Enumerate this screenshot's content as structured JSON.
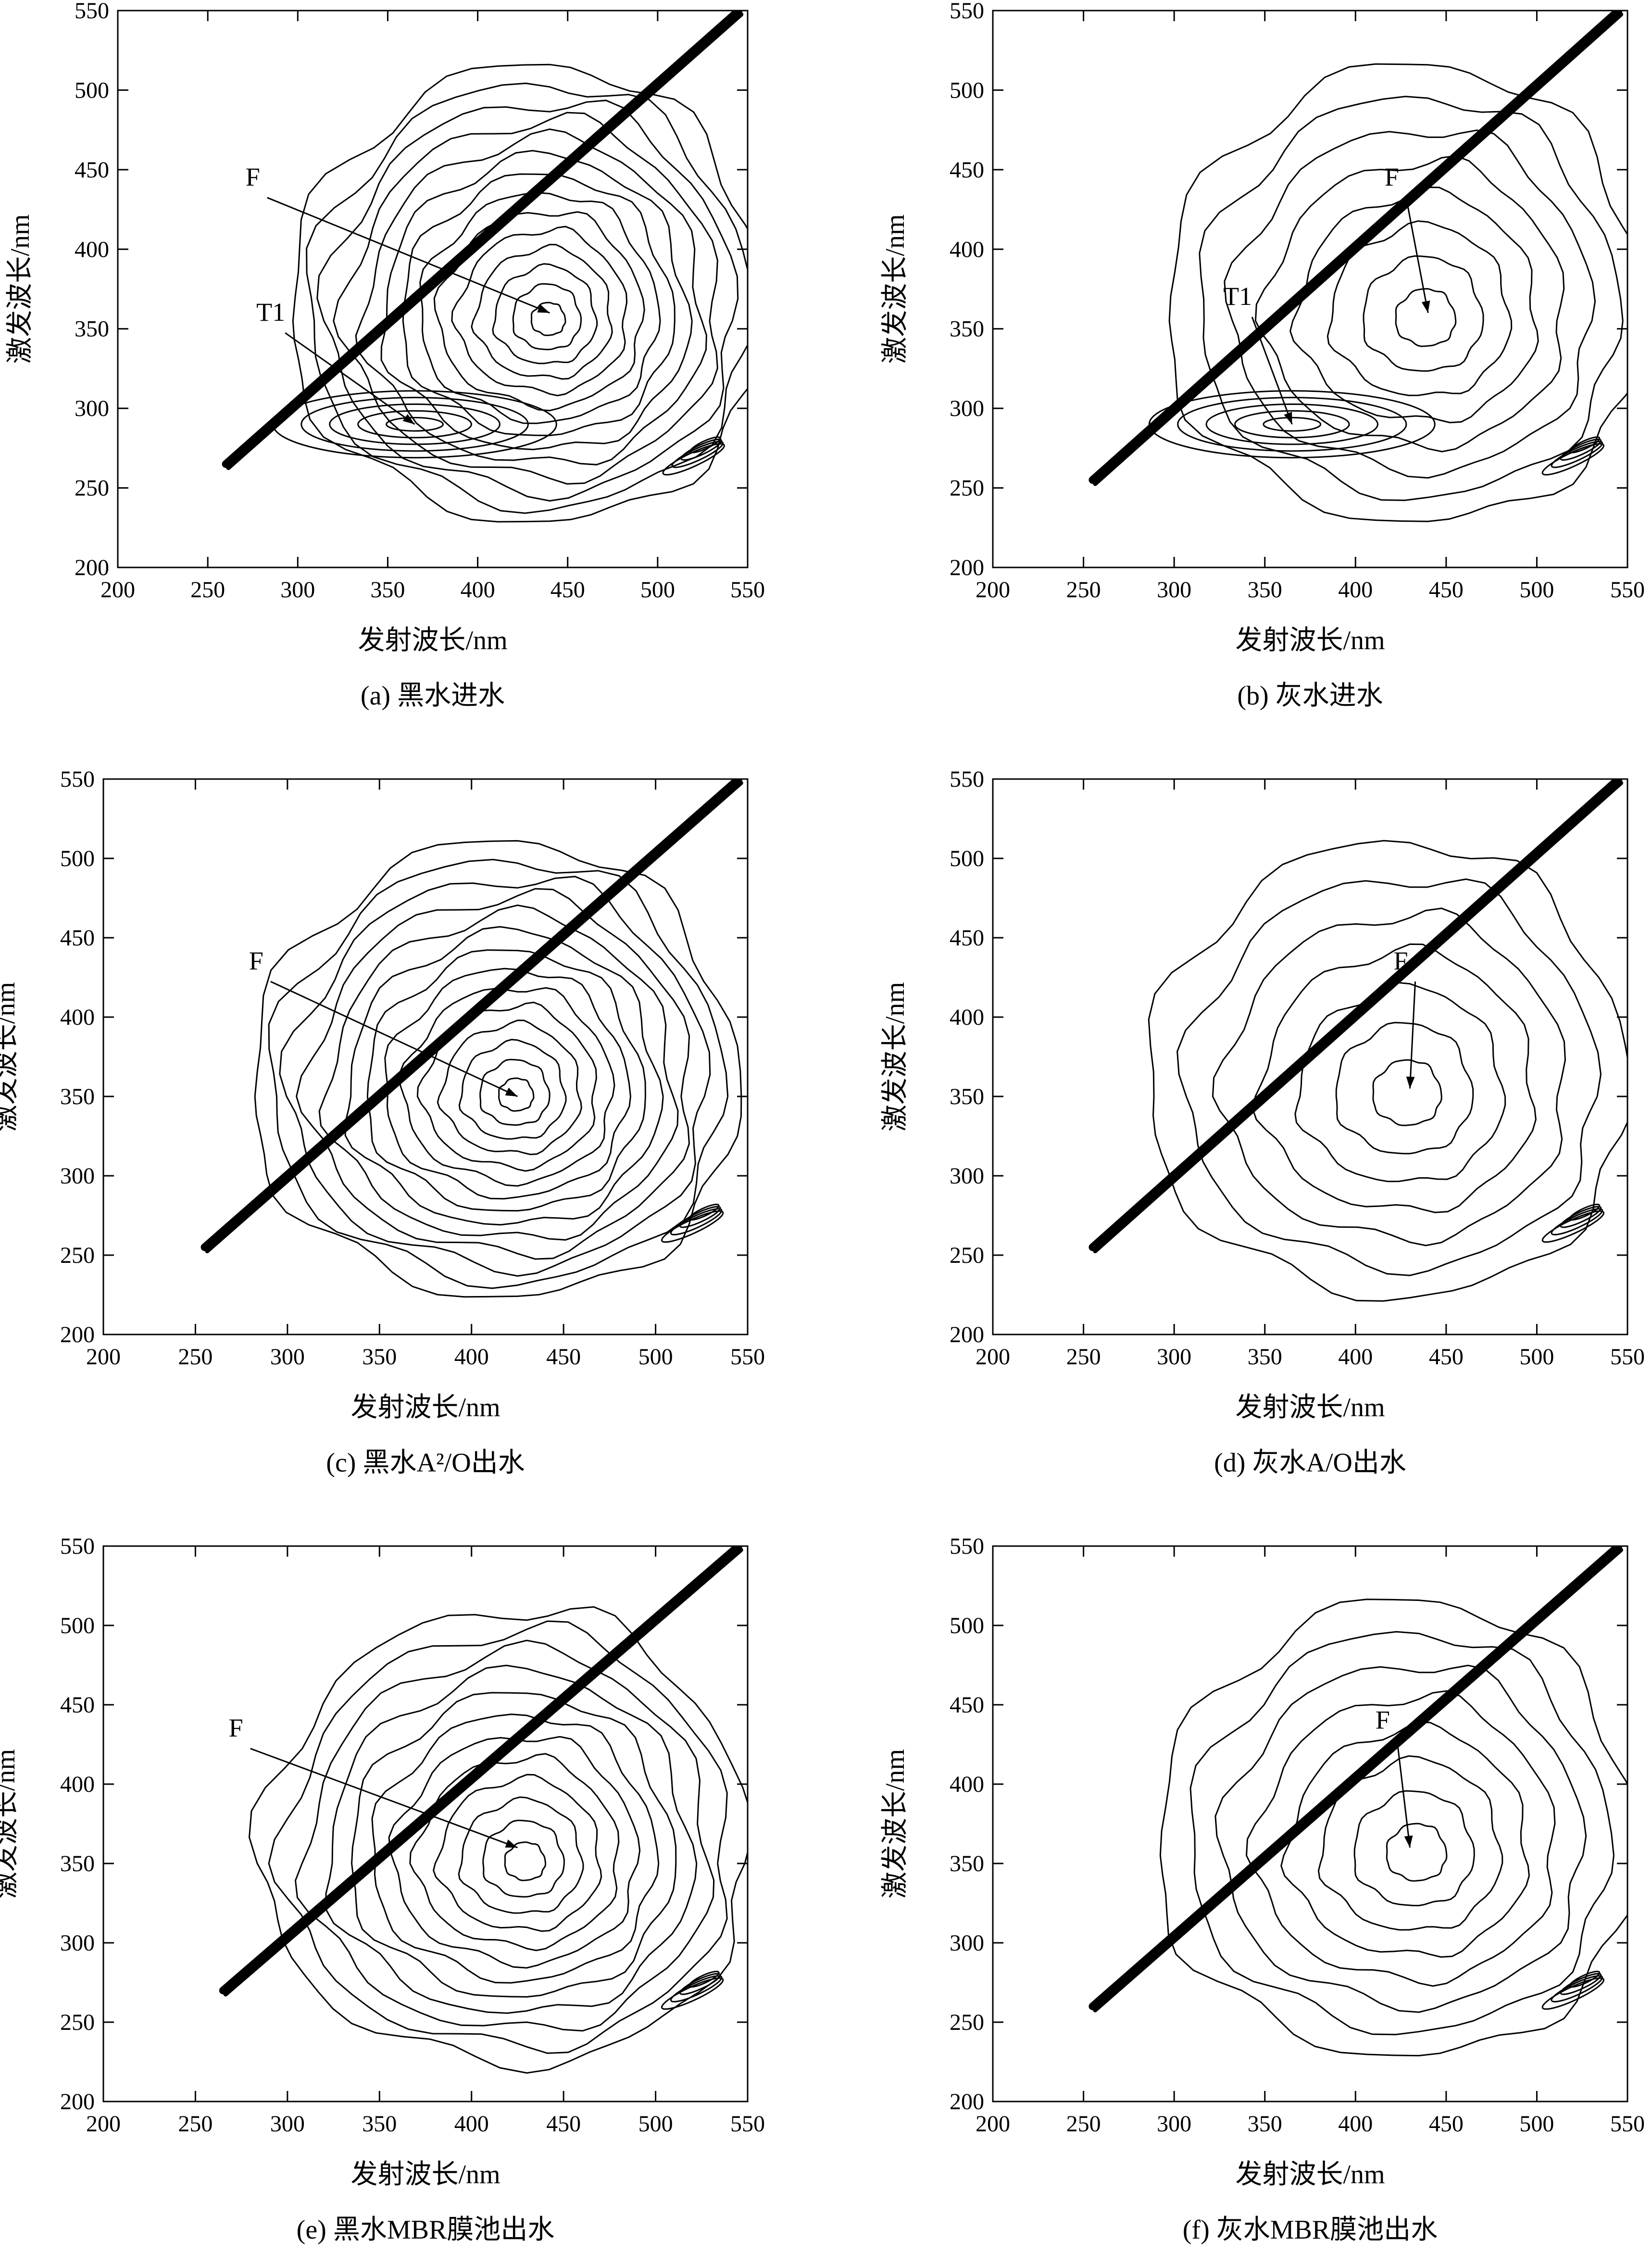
{
  "figure": {
    "axis": {
      "xlabel": "发射波长/nm",
      "ylabel": "激发波长/nm",
      "xlim": [
        200,
        550
      ],
      "ylim": [
        200,
        550
      ],
      "xticks": [
        200,
        250,
        300,
        350,
        400,
        450,
        500,
        550
      ],
      "yticks": [
        200,
        250,
        300,
        350,
        400,
        450,
        500,
        550
      ]
    }
  },
  "chart_data": [
    {
      "type": "contour",
      "caption": "(a) 黑水进水",
      "xlabel": "发射波长/nm",
      "ylabel": "激发波长/nm",
      "xlim": [
        200,
        550
      ],
      "ylim": [
        200,
        550
      ],
      "peaks": [
        {
          "label": "F",
          "x": 440,
          "y": 360,
          "label_x": 275,
          "label_y": 440
        },
        {
          "label": "T1",
          "x": 365,
          "y": 290,
          "label_x": 285,
          "label_y": 355
        }
      ],
      "contour_center": [
        440,
        355
      ],
      "contour_levels": 14,
      "scatter_band": [
        [
          260,
          265
        ],
        [
          545,
          550
        ]
      ]
    },
    {
      "type": "contour",
      "caption": "(b) 灰水进水",
      "xlabel": "发射波长/nm",
      "ylabel": "激发波长/nm",
      "xlim": [
        200,
        550
      ],
      "ylim": [
        200,
        550
      ],
      "peaks": [
        {
          "label": "F",
          "x": 440,
          "y": 360,
          "label_x": 420,
          "label_y": 440
        },
        {
          "label": "T1",
          "x": 365,
          "y": 290,
          "label_x": 335,
          "label_y": 365
        }
      ],
      "contour_center": [
        440,
        355
      ],
      "contour_levels": 8,
      "scatter_band": [
        [
          255,
          255
        ],
        [
          545,
          550
        ]
      ]
    },
    {
      "type": "contour",
      "caption": "(c) 黑水A²/O出水",
      "xlabel": "发射波长/nm",
      "ylabel": "激发波长/nm",
      "xlim": [
        200,
        550
      ],
      "ylim": [
        200,
        550
      ],
      "peaks": [
        {
          "label": "F",
          "x": 425,
          "y": 350,
          "label_x": 283,
          "label_y": 430
        }
      ],
      "contour_center": [
        425,
        350
      ],
      "contour_levels": 14,
      "scatter_band": [
        [
          255,
          255
        ],
        [
          545,
          550
        ]
      ]
    },
    {
      "type": "contour",
      "caption": "(d) 灰水A/O出水",
      "xlabel": "发射波长/nm",
      "ylabel": "激发波长/nm",
      "xlim": [
        200,
        550
      ],
      "ylim": [
        200,
        550
      ],
      "peaks": [
        {
          "label": "F",
          "x": 430,
          "y": 355,
          "label_x": 425,
          "label_y": 430
        }
      ],
      "contour_center": [
        430,
        350
      ],
      "contour_levels": 7,
      "scatter_band": [
        [
          255,
          255
        ],
        [
          545,
          550
        ]
      ]
    },
    {
      "type": "contour",
      "caption": "(e) 黑水MBR膜池出水",
      "xlabel": "发射波长/nm",
      "ylabel": "激发波长/nm",
      "xlim": [
        200,
        550
      ],
      "ylim": [
        200,
        550
      ],
      "peaks": [
        {
          "label": "F",
          "x": 425,
          "y": 360,
          "label_x": 272,
          "label_y": 430
        }
      ],
      "contour_center": [
        430,
        350
      ],
      "contour_levels": 12,
      "scatter_band": [
        [
          265,
          270
        ],
        [
          545,
          550
        ]
      ]
    },
    {
      "type": "contour",
      "caption": "(f) 灰水MBR膜池出水",
      "xlabel": "发射波长/nm",
      "ylabel": "激发波长/nm",
      "xlim": [
        200,
        550
      ],
      "ylim": [
        200,
        550
      ],
      "peaks": [
        {
          "label": "F",
          "x": 430,
          "y": 360,
          "label_x": 415,
          "label_y": 435
        }
      ],
      "contour_center": [
        435,
        355
      ],
      "contour_levels": 8,
      "scatter_band": [
        [
          255,
          260
        ],
        [
          545,
          550
        ]
      ]
    }
  ]
}
